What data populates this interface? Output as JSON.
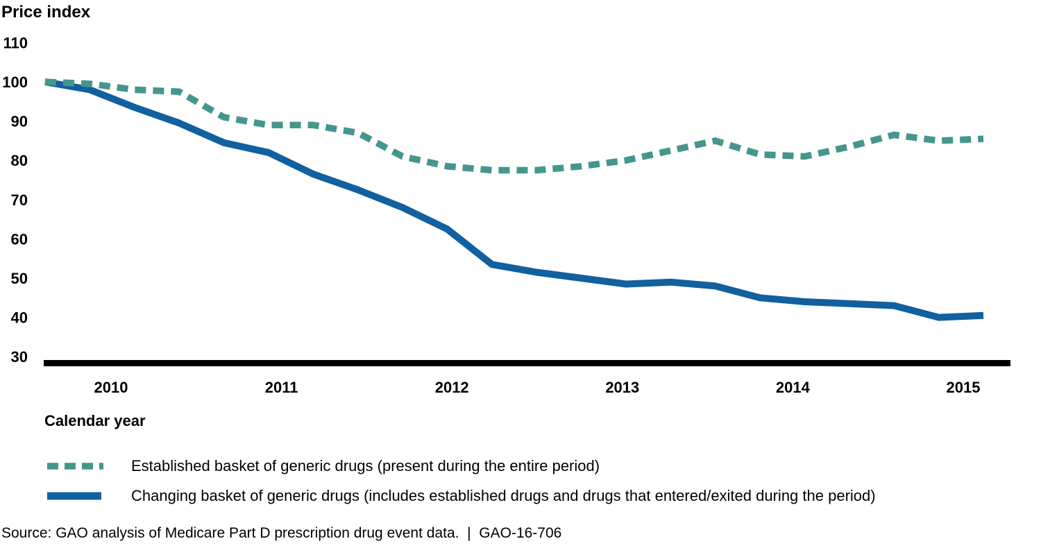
{
  "chart_data": {
    "type": "line",
    "title": "Price index",
    "ylabel": "Price index",
    "xlabel": "Calendar year",
    "ylim": [
      30,
      110
    ],
    "grid": false,
    "legend_position": "bottom-left",
    "yticks": [
      110,
      100,
      90,
      80,
      70,
      60,
      50,
      40,
      30
    ],
    "year_ticks": [
      "2010",
      "2011",
      "2012",
      "2013",
      "2014",
      "2015"
    ],
    "x": [
      "2010 Q1",
      "2010 Q2",
      "2010 Q3",
      "2010 Q4",
      "2011 Q1",
      "2011 Q2",
      "2011 Q3",
      "2011 Q4",
      "2012 Q1",
      "2012 Q2",
      "2012 Q3",
      "2012 Q4",
      "2013 Q1",
      "2013 Q2",
      "2013 Q3",
      "2013 Q4",
      "2014 Q1",
      "2014 Q2",
      "2014 Q3",
      "2014 Q4",
      "2015 Q1",
      "2015 Q2"
    ],
    "series": [
      {
        "name": "Established basket of generic drugs (present during the entire period)",
        "style": "dashed",
        "color": "#44968e",
        "values": [
          100,
          99.5,
          98,
          97.5,
          91,
          89,
          89,
          87,
          81,
          78.5,
          77.5,
          77.5,
          78.5,
          80,
          82.5,
          85,
          81.5,
          81,
          83.5,
          86.5,
          85,
          85.5
        ]
      },
      {
        "name": "Changing basket of generic drugs (includes established drugs and drugs that entered/exited during the period)",
        "style": "solid",
        "color": "#11609f",
        "values": [
          100,
          98,
          93.5,
          89.5,
          84.5,
          82,
          76.5,
          72.5,
          68,
          62.5,
          53.5,
          51.5,
          50,
          48.5,
          49,
          48,
          45,
          44,
          43.5,
          43,
          40,
          40.5
        ]
      }
    ]
  },
  "source": {
    "text": "Source: GAO analysis of Medicare Part D prescription drug event data.  |  GAO-16-706"
  }
}
